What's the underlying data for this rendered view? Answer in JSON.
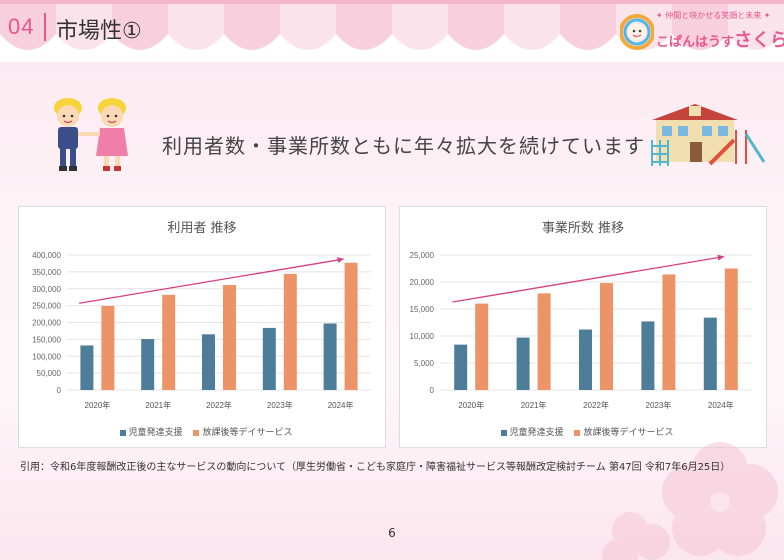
{
  "header": {
    "section_number": "04",
    "title": "市場性①"
  },
  "logo": {
    "tagline": "✦ 仲間と咲かせる笑顔と未来 ✦",
    "brand_prefix": "こぱんはうす",
    "brand_name": "さくら"
  },
  "headline": "利用者数・事業所数ともに年々拡大を続けています",
  "colors": {
    "accent": "#e9568a",
    "series1": "#4e7d99",
    "series2": "#ec9467",
    "trend": "#d63e82"
  },
  "chart_data": [
    {
      "type": "bar",
      "title": "利用者 推移",
      "categories": [
        "2020年",
        "2021年",
        "2022年",
        "2023年",
        "2024年"
      ],
      "series": [
        {
          "name": "児童発達支援",
          "values": [
            132000,
            151000,
            165000,
            184000,
            197000
          ]
        },
        {
          "name": "放課後等デイサービス",
          "values": [
            249000,
            282000,
            311000,
            344000,
            377000
          ]
        }
      ],
      "yticks": [
        "0",
        "50,000",
        "100,000",
        "150,000",
        "200,000",
        "250,000",
        "300,000",
        "350,000",
        "400,000"
      ],
      "ylim": [
        0,
        400000
      ],
      "trend": [
        257000,
        388000
      ],
      "legend": "bottom"
    },
    {
      "type": "bar",
      "title": "事業所数 推移",
      "categories": [
        "2020年",
        "2021年",
        "2022年",
        "2023年",
        "2024年"
      ],
      "series": [
        {
          "name": "児童発達支援",
          "values": [
            8400,
            9700,
            11200,
            12700,
            13400
          ]
        },
        {
          "name": "放課後等デイサービス",
          "values": [
            16000,
            17900,
            19800,
            21400,
            22500
          ]
        }
      ],
      "yticks": [
        "0",
        "5,000",
        "10,000",
        "15,000",
        "20,000",
        "25,000"
      ],
      "ylim": [
        0,
        25000
      ],
      "trend": [
        16300,
        24700
      ],
      "legend": "bottom"
    }
  ],
  "source": "引用：令和6年度報酬改正後の主なサービスの動向について（厚生労働省・こども家庭庁・障害福祉サービス等報酬改定検討チーム 第47回 令和7年6月25日）",
  "page_number": "6"
}
